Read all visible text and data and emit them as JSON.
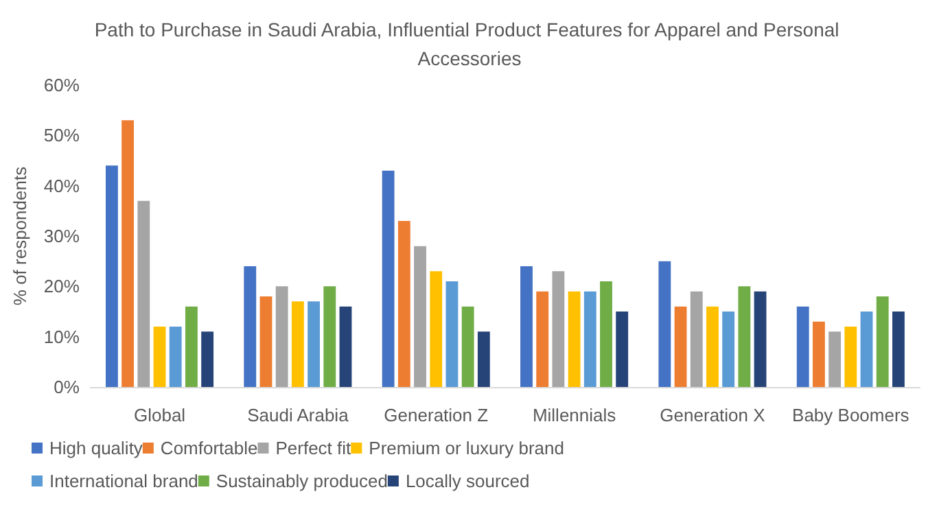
{
  "chart_data": {
    "type": "bar",
    "title": "Path to Purchase in Saudi Arabia, Influential Product Features for Apparel and Personal Accessories",
    "ylabel": "% of respondents",
    "categories": [
      "Global",
      "Saudi Arabia",
      "Generation Z",
      "Millennials",
      "Generation X",
      "Baby Boomers"
    ],
    "series": [
      {
        "name": "High quality",
        "color": "#4472c4",
        "values": [
          44,
          24,
          43,
          24,
          25,
          16
        ]
      },
      {
        "name": "Comfortable",
        "color": "#ed7d31",
        "values": [
          53,
          18,
          33,
          19,
          16,
          13
        ]
      },
      {
        "name": "Perfect fit",
        "color": "#a5a5a5",
        "values": [
          37,
          20,
          28,
          23,
          19,
          11
        ]
      },
      {
        "name": "Premium or luxury brand",
        "color": "#ffc000",
        "values": [
          12,
          17,
          23,
          19,
          16,
          12
        ]
      },
      {
        "name": "International brand",
        "color": "#5b9bd5",
        "values": [
          12,
          17,
          21,
          19,
          15,
          15
        ]
      },
      {
        "name": "Sustainably produced",
        "color": "#70ad47",
        "values": [
          16,
          20,
          16,
          21,
          20,
          18
        ]
      },
      {
        "name": "Locally sourced",
        "color": "#264478",
        "values": [
          11,
          16,
          11,
          15,
          19,
          15
        ]
      }
    ],
    "ylim": [
      0,
      60
    ],
    "yticks": [
      {
        "value": 0,
        "label": "0%"
      },
      {
        "value": 10,
        "label": "10%"
      },
      {
        "value": 20,
        "label": "20%"
      },
      {
        "value": 30,
        "label": "30%"
      },
      {
        "value": 40,
        "label": "40%"
      },
      {
        "value": 50,
        "label": "50%"
      },
      {
        "value": 60,
        "label": "60%"
      }
    ],
    "grid": false,
    "legend": "bottom"
  }
}
